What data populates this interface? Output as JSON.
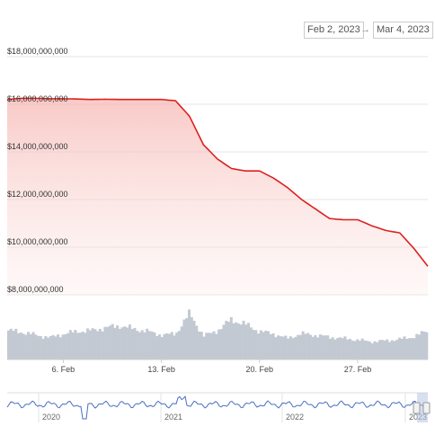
{
  "range_selector": {
    "from": "Feb 2, 2023",
    "to": "Mar 4, 2023",
    "arrow": "→"
  },
  "colors": {
    "line": "#dd1f1f",
    "area_top": "#f6b8b4",
    "volume": "#c3c9d2",
    "navigator_line": "#4a6fc0",
    "grid": "#e6e6e6"
  },
  "chart_data": {
    "type": "line",
    "title": "",
    "xlabel": "",
    "ylabel": "",
    "ylim": [
      8000000000,
      18000000000
    ],
    "y_ticks": [
      "$8,000,000,000",
      "$10,000,000,000",
      "$12,000,000,000",
      "$14,000,000,000",
      "$16,000,000,000",
      "$18,000,000,000"
    ],
    "y_tick_values": [
      8000000000,
      10000000000,
      12000000000,
      14000000000,
      16000000000,
      18000000000
    ],
    "x_range": [
      "2023-02-02",
      "2023-03-04"
    ],
    "x_ticks": [
      "6. Feb",
      "13. Feb",
      "20. Feb",
      "27. Feb"
    ],
    "x_tick_dates": [
      "2023-02-06",
      "2023-02-13",
      "2023-02-20",
      "2023-02-27"
    ],
    "series": [
      {
        "x": [
          "2023-02-02",
          "2023-02-03",
          "2023-02-04",
          "2023-02-05",
          "2023-02-06",
          "2023-02-07",
          "2023-02-08",
          "2023-02-09",
          "2023-02-10",
          "2023-02-11",
          "2023-02-12",
          "2023-02-13",
          "2023-02-14",
          "2023-02-15",
          "2023-02-16",
          "2023-02-17",
          "2023-02-18",
          "2023-02-19",
          "2023-02-20",
          "2023-02-21",
          "2023-02-22",
          "2023-02-23",
          "2023-02-24",
          "2023-02-25",
          "2023-02-26",
          "2023-02-27",
          "2023-02-28",
          "2023-03-01",
          "2023-03-02",
          "2023-03-03",
          "2023-03-04"
        ],
        "values": [
          16200000000,
          16250000000,
          16250000000,
          16230000000,
          16230000000,
          16220000000,
          16200000000,
          16210000000,
          16200000000,
          16200000000,
          16200000000,
          16200000000,
          16150000000,
          15500000000,
          14300000000,
          13700000000,
          13300000000,
          13200000000,
          13200000000,
          12900000000,
          12500000000,
          12000000000,
          11600000000,
          11200000000,
          11150000000,
          11150000000,
          10900000000,
          10700000000,
          10600000000,
          9950000000,
          9200000000
        ]
      }
    ],
    "volume": [
      0.62,
      0.58,
      0.52,
      0.47,
      0.55,
      0.6,
      0.62,
      0.68,
      0.72,
      0.65,
      0.6,
      0.52,
      0.55,
      0.98,
      0.5,
      0.62,
      0.85,
      0.75,
      0.6,
      0.55,
      0.45,
      0.55,
      0.52,
      0.48,
      0.45,
      0.42,
      0.38,
      0.4,
      0.43,
      0.48,
      0.6
    ],
    "navigator": {
      "labels": [
        "2020",
        "2021",
        "2022",
        "2023"
      ]
    }
  }
}
